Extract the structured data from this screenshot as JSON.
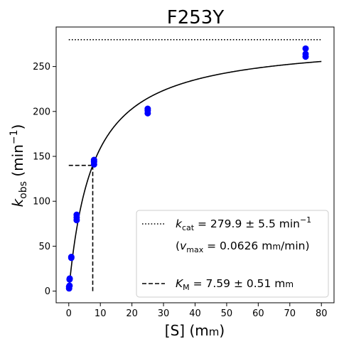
{
  "chart_data": {
    "type": "scatter",
    "title": "F253Y",
    "xlabel": {
      "main": "[S] (m",
      "unit_sc": "m",
      "close": ")"
    },
    "ylabel": {
      "k": "k",
      "sub": "obs",
      "unit": " (min",
      "sup": "−1",
      "close": ")"
    },
    "xlim": [
      -4,
      84
    ],
    "ylim": [
      -13,
      294
    ],
    "xticks": [
      0,
      10,
      20,
      30,
      40,
      50,
      60,
      70,
      80
    ],
    "yticks": [
      0,
      50,
      100,
      150,
      200,
      250
    ],
    "grid": false,
    "legend_position": "lower-right",
    "points": {
      "color": "#0000ff",
      "data": [
        [
          0.1,
          3
        ],
        [
          0.1,
          5
        ],
        [
          0.25,
          6
        ],
        [
          0.25,
          13
        ],
        [
          0.3,
          14
        ],
        [
          0.8,
          37
        ],
        [
          0.8,
          38
        ],
        [
          2.5,
          79
        ],
        [
          2.5,
          82
        ],
        [
          2.5,
          85
        ],
        [
          8,
          141
        ],
        [
          8,
          144
        ],
        [
          8,
          146
        ],
        [
          25,
          198
        ],
        [
          25,
          201
        ],
        [
          25,
          203
        ],
        [
          75,
          261
        ],
        [
          75,
          264
        ],
        [
          75,
          270
        ]
      ]
    },
    "fit": {
      "model": "kcat*S/(KM+S)",
      "kcat": 279.9,
      "KM": 7.59,
      "x_range": [
        0,
        80
      ],
      "color": "#000000"
    },
    "kcat_line": {
      "y": 279.9,
      "x_range": [
        0,
        80
      ],
      "style": "dotted"
    },
    "km_lines": {
      "x": 7.59,
      "y": 139.95,
      "x_start": 0,
      "style": "dashed"
    },
    "legend": [
      {
        "style": "dotted",
        "k": "k",
        "sub": "cat",
        "text": " = 279.9 ± 5.5 min",
        "sup": "−1"
      },
      {
        "style": "none",
        "text_a": "(",
        "v": "v",
        "sub": "max",
        "text_b": " = 0.0626 m",
        "unit_sc": "m",
        "text_c": "/min)"
      },
      {
        "style": "dashed",
        "k": "K",
        "sub": "M",
        "text": " = 7.59 ± 0.51 m",
        "unit_sc": "m"
      }
    ]
  }
}
